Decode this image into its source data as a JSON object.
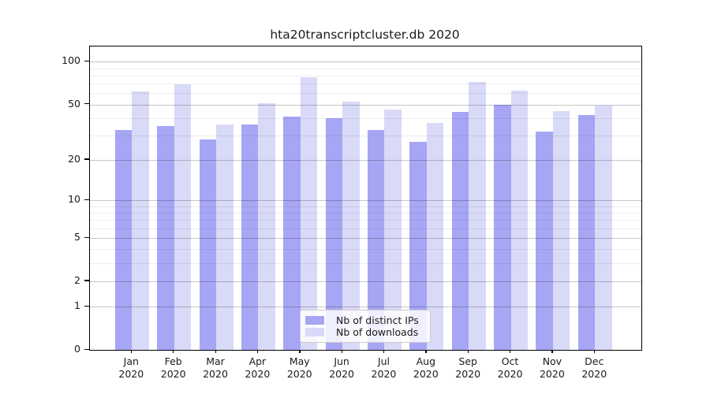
{
  "title": "hta20transcriptcluster.db 2020",
  "legend": {
    "items": [
      {
        "label": "Nb of distinct IPs",
        "color": "#a6a6f4"
      },
      {
        "label": "Nb of downloads",
        "color": "#d9d9f8"
      }
    ]
  },
  "chart_data": {
    "type": "bar",
    "title": "hta20transcriptcluster.db 2020",
    "months": [
      "Jan",
      "Feb",
      "Mar",
      "Apr",
      "May",
      "Jun",
      "Jul",
      "Aug",
      "Sep",
      "Oct",
      "Nov",
      "Dec"
    ],
    "year_label": "2020",
    "categories": [
      "Jan 2020",
      "Feb 2020",
      "Mar 2020",
      "Apr 2020",
      "May 2020",
      "Jun 2020",
      "Jul 2020",
      "Aug 2020",
      "Sep 2020",
      "Oct 2020",
      "Nov 2020",
      "Dec 2020"
    ],
    "series": [
      {
        "name": "Nb of distinct IPs",
        "color": "#a6a6f4",
        "values": [
          33,
          35,
          28,
          36,
          41,
          40,
          33,
          27,
          44,
          50,
          32,
          42
        ]
      },
      {
        "name": "Nb of downloads",
        "color": "#d9d9f8",
        "values": [
          62,
          69,
          36,
          51,
          78,
          52,
          46,
          37,
          72,
          63,
          45,
          49
        ]
      }
    ],
    "yscale": "log10(value+1)",
    "ylim": [
      0,
      128
    ],
    "y_major_ticks": [
      0,
      1,
      2,
      5,
      10,
      20,
      50,
      100
    ],
    "y_minor_ticks": [
      3,
      4,
      6,
      7,
      8,
      9,
      30,
      40,
      60,
      70,
      80,
      90
    ],
    "grid": "horizontal major+minor",
    "legend_position": "lower center",
    "xlabel": "",
    "ylabel": ""
  }
}
